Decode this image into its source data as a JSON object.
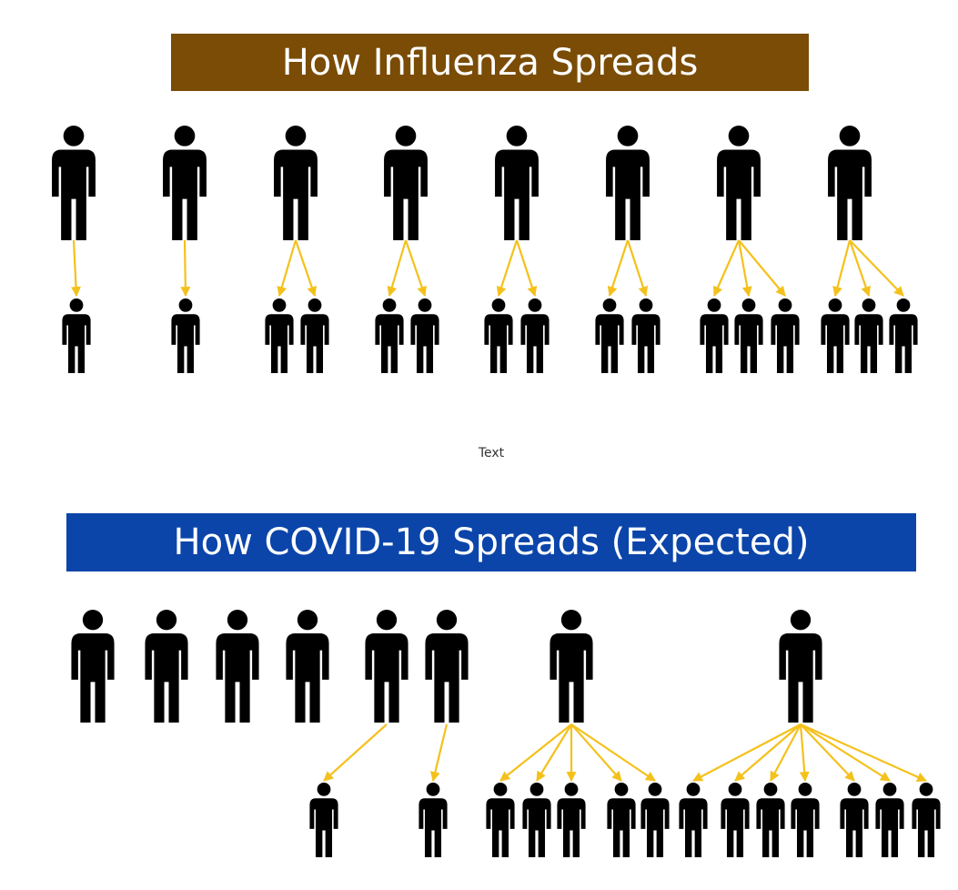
{
  "colors": {
    "flu_banner": "#7a4c06",
    "covid_banner": "#0b45aa",
    "arrow": "#f4c11c",
    "person": "#000000"
  },
  "flu": {
    "title": "How Influenza Spreads",
    "infected_per_person": [
      1,
      1,
      2,
      2,
      2,
      2,
      3,
      3
    ]
  },
  "middle_text": "Text",
  "covid": {
    "title": "How COVID-19 Spreads (Expected)",
    "infected_per_person": [
      0,
      0,
      0,
      0,
      1,
      1,
      5,
      7
    ]
  }
}
